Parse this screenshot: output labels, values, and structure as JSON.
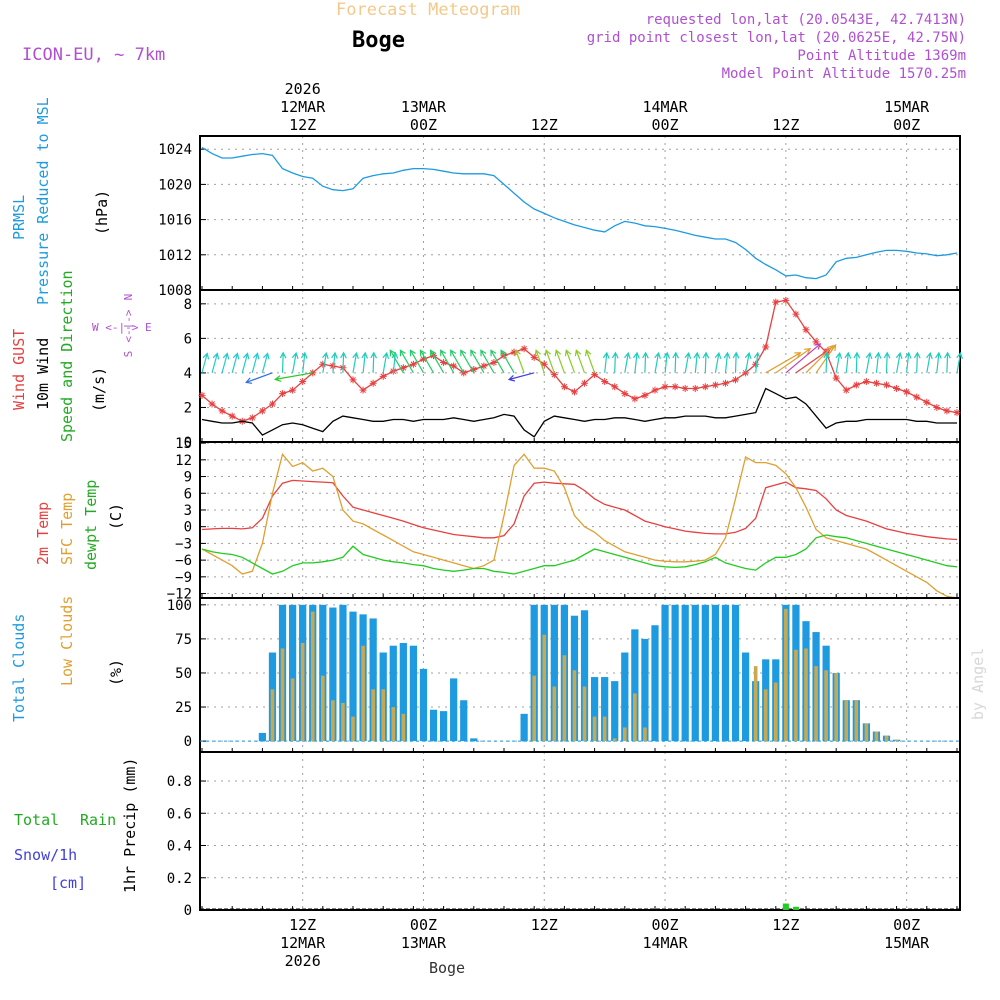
{
  "header": {
    "title": "Forecast Meteogram",
    "location": "Boge",
    "model": "ICON-EU, ~ 7km",
    "requested": "requested lon,lat (20.0543E, 42.7413N)",
    "grid_point": "grid point closest lon,lat (20.0625E, 42.75N)",
    "point_altitude": "Point Altitude 1369m",
    "model_altitude": "Model Point Altitude 1570.25m",
    "watermark": "by Angel",
    "bottom_label": "Boge"
  },
  "colors": {
    "pressure": "#1e9be0",
    "gust": "#e84040",
    "wind": "#000000",
    "t2m": "#e84040",
    "sfc": "#e0a030",
    "dewpt": "#22cc22",
    "total_clouds": "#1e9be0",
    "low_clouds": "#c8a850",
    "rain": "#22cc22",
    "snow": "#4040e0",
    "purple": "#b050d0"
  },
  "time_axis": {
    "top_labels": [
      {
        "t": 10,
        "lines": [
          "2026",
          "12MAR",
          "12Z"
        ]
      },
      {
        "t": 22,
        "lines": [
          "13MAR",
          "00Z"
        ]
      },
      {
        "t": 34,
        "lines": [
          "12Z"
        ]
      },
      {
        "t": 46,
        "lines": [
          "14MAR",
          "00Z"
        ]
      },
      {
        "t": 58,
        "lines": [
          "12Z"
        ]
      },
      {
        "t": 70,
        "lines": [
          "15MAR",
          "00Z"
        ]
      }
    ],
    "bottom_labels": [
      {
        "t": 10,
        "lines": [
          "12Z",
          "12MAR",
          "2026"
        ]
      },
      {
        "t": 22,
        "lines": [
          "00Z",
          "13MAR"
        ]
      },
      {
        "t": 34,
        "lines": [
          "12Z"
        ]
      },
      {
        "t": 46,
        "lines": [
          "00Z",
          "14MAR"
        ]
      },
      {
        "t": 58,
        "lines": [
          "12Z"
        ]
      },
      {
        "t": 70,
        "lines": [
          "00Z",
          "15MAR"
        ]
      }
    ]
  },
  "panel_labels": {
    "pressure": [
      "PRMSL",
      "Pressure Reduced to MSL",
      "(hPa)"
    ],
    "wind": [
      "Wind GUST",
      "10m Wind",
      "Speed and Direction",
      "(m/s)"
    ],
    "compass": [
      "N",
      "S",
      "W <-|-> E"
    ],
    "temp": [
      "2m Temp",
      "SFC Temp",
      "dewpt Temp",
      "(C)"
    ],
    "clouds": [
      "Total Clouds",
      "Low Clouds",
      "(%)"
    ],
    "precip": [
      "Total",
      "Rain",
      "Snow/1h",
      "[cm]",
      "1hr Precip (mm)"
    ]
  },
  "chart_data": [
    {
      "type": "line",
      "title": "PRMSL Pressure Reduced to MSL",
      "ylabel": "hPa",
      "ylim": [
        1008,
        1025.5
      ],
      "yticks": [
        1008,
        1012,
        1016,
        1020,
        1024
      ],
      "x": [
        0,
        1,
        2,
        3,
        4,
        5,
        6,
        7,
        8,
        9,
        10,
        11,
        12,
        13,
        14,
        15,
        16,
        17,
        18,
        19,
        20,
        21,
        22,
        23,
        24,
        25,
        26,
        27,
        28,
        29,
        30,
        31,
        32,
        33,
        34,
        35,
        36,
        37,
        38,
        39,
        40,
        41,
        42,
        43,
        44,
        45,
        46,
        47,
        48,
        49,
        50,
        51,
        52,
        53,
        54,
        55,
        56,
        57,
        58,
        59,
        60,
        61,
        62,
        63,
        64,
        65,
        66,
        67,
        68,
        69,
        70,
        71,
        72,
        73,
        74,
        75
      ],
      "series": [
        {
          "name": "PRMSL",
          "values": [
            1024.2,
            1023.5,
            1023.0,
            1023.0,
            1023.2,
            1023.4,
            1023.5,
            1023.3,
            1021.8,
            1021.3,
            1020.9,
            1020.7,
            1019.8,
            1019.4,
            1019.3,
            1019.5,
            1020.7,
            1021.0,
            1021.2,
            1021.3,
            1021.6,
            1021.8,
            1021.8,
            1021.7,
            1021.5,
            1021.3,
            1021.2,
            1021.2,
            1021.2,
            1021.0,
            1020.0,
            1019.0,
            1018.0,
            1017.2,
            1016.7,
            1016.2,
            1015.8,
            1015.4,
            1015.1,
            1014.8,
            1014.6,
            1015.3,
            1015.8,
            1015.6,
            1015.3,
            1015.2,
            1015.0,
            1014.8,
            1014.5,
            1014.2,
            1014.0,
            1013.8,
            1013.8,
            1013.4,
            1012.6,
            1011.6,
            1010.9,
            1010.3,
            1009.6,
            1009.7,
            1009.4,
            1009.3,
            1009.7,
            1011.2,
            1011.6,
            1011.7,
            1012.0,
            1012.3,
            1012.5,
            1012.5,
            1012.4,
            1012.2,
            1012.1,
            1011.9,
            1012.0,
            1012.2
          ]
        }
      ]
    },
    {
      "type": "line",
      "title": "Wind GUST / 10m Wind Speed and Direction",
      "ylabel": "m/s",
      "ylim": [
        0,
        8.8
      ],
      "yticks": [
        0,
        2,
        4,
        6,
        8
      ],
      "x": [
        0,
        1,
        2,
        3,
        4,
        5,
        6,
        7,
        8,
        9,
        10,
        11,
        12,
        13,
        14,
        15,
        16,
        17,
        18,
        19,
        20,
        21,
        22,
        23,
        24,
        25,
        26,
        27,
        28,
        29,
        30,
        31,
        32,
        33,
        34,
        35,
        36,
        37,
        38,
        39,
        40,
        41,
        42,
        43,
        44,
        45,
        46,
        47,
        48,
        49,
        50,
        51,
        52,
        53,
        54,
        55,
        56,
        57,
        58,
        59,
        60,
        61,
        62,
        63,
        64,
        65,
        66,
        67,
        68,
        69,
        70,
        71,
        72,
        73,
        74,
        75
      ],
      "series": [
        {
          "name": "Wind GUST",
          "values": [
            2.7,
            2.2,
            1.8,
            1.5,
            1.2,
            1.4,
            1.8,
            2.2,
            2.8,
            3.0,
            3.5,
            4.0,
            4.5,
            4.4,
            4.3,
            3.6,
            3.0,
            3.4,
            3.8,
            4.1,
            4.3,
            4.5,
            4.8,
            5.0,
            4.6,
            4.4,
            4.0,
            4.2,
            4.4,
            4.6,
            5.0,
            5.2,
            5.4,
            4.9,
            4.5,
            3.9,
            3.2,
            2.9,
            3.4,
            3.9,
            3.5,
            3.2,
            2.8,
            2.5,
            2.7,
            3.0,
            3.2,
            3.2,
            3.1,
            3.1,
            3.2,
            3.3,
            3.4,
            3.6,
            4.0,
            4.5,
            5.5,
            8.1,
            8.2,
            7.4,
            6.5,
            5.8,
            5.2,
            3.7,
            3.0,
            3.3,
            3.5,
            3.4,
            3.3,
            3.1,
            2.9,
            2.6,
            2.3,
            2.0,
            1.8,
            1.7
          ]
        },
        {
          "name": "10m Wind",
          "values": [
            1.3,
            1.2,
            1.1,
            1.1,
            1.2,
            1.1,
            0.4,
            0.7,
            1.0,
            1.1,
            1.0,
            0.8,
            0.6,
            1.2,
            1.5,
            1.4,
            1.3,
            1.2,
            1.2,
            1.3,
            1.3,
            1.2,
            1.3,
            1.3,
            1.3,
            1.4,
            1.3,
            1.2,
            1.3,
            1.4,
            1.6,
            1.5,
            0.7,
            0.3,
            1.2,
            1.5,
            1.4,
            1.3,
            1.2,
            1.3,
            1.3,
            1.4,
            1.4,
            1.3,
            1.2,
            1.3,
            1.4,
            1.4,
            1.5,
            1.5,
            1.5,
            1.4,
            1.4,
            1.5,
            1.6,
            1.7,
            3.1,
            2.8,
            2.5,
            2.6,
            2.2,
            1.5,
            0.8,
            1.1,
            1.2,
            1.2,
            1.3,
            1.3,
            1.3,
            1.3,
            1.3,
            1.2,
            1.2,
            1.1,
            1.1,
            1.1
          ]
        }
      ],
      "wind_arrows": {
        "y_level": 4.7,
        "arrow_1": "cyan arrows pointing north-northeast most hours",
        "special_times": [
          7,
          11,
          33,
          56,
          57,
          58,
          59,
          60,
          61
        ]
      }
    },
    {
      "type": "line",
      "title": "2m Temp / SFC Temp / dewpt Temp",
      "ylabel": "C",
      "ylim": [
        -12.8,
        15.2
      ],
      "yticks": [
        -12,
        -9,
        -6,
        -3,
        0,
        3,
        6,
        9,
        12,
        15
      ],
      "x": [
        0,
        1,
        2,
        3,
        4,
        5,
        6,
        7,
        8,
        9,
        10,
        11,
        12,
        13,
        14,
        15,
        16,
        17,
        18,
        19,
        20,
        21,
        22,
        23,
        24,
        25,
        26,
        27,
        28,
        29,
        30,
        31,
        32,
        33,
        34,
        35,
        36,
        37,
        38,
        39,
        40,
        41,
        42,
        43,
        44,
        45,
        46,
        47,
        48,
        49,
        50,
        51,
        52,
        53,
        54,
        55,
        56,
        57,
        58,
        59,
        60,
        61,
        62,
        63,
        64,
        65,
        66,
        67,
        68,
        69,
        70,
        71,
        72,
        73,
        74,
        75
      ],
      "series": [
        {
          "name": "2m Temp",
          "values": [
            -0.5,
            -0.4,
            -0.3,
            -0.3,
            -0.4,
            -0.2,
            1.5,
            5.5,
            7.8,
            8.3,
            8.2,
            8.1,
            8.0,
            7.9,
            5.5,
            3.5,
            3.0,
            2.5,
            2.0,
            1.5,
            1.0,
            0.4,
            -0.2,
            -0.6,
            -1.0,
            -1.4,
            -1.6,
            -1.8,
            -2.0,
            -2.0,
            -1.6,
            0.5,
            5.5,
            7.8,
            8.0,
            7.8,
            7.7,
            7.6,
            6.5,
            5.0,
            4.0,
            3.5,
            3.0,
            2.0,
            1.0,
            0.5,
            0.0,
            -0.4,
            -0.8,
            -1.0,
            -1.2,
            -1.3,
            -1.3,
            -1.0,
            -0.3,
            1.5,
            7.0,
            7.5,
            8.0,
            7.0,
            6.8,
            6.5,
            5.0,
            3.0,
            2.0,
            1.5,
            1.0,
            0.3,
            -0.4,
            -0.8,
            -1.2,
            -1.5,
            -1.8,
            -2.0,
            -2.2,
            -2.3
          ]
        },
        {
          "name": "SFC Temp",
          "values": [
            -4.0,
            -5.0,
            -6.0,
            -7.0,
            -8.5,
            -8.0,
            -3.0,
            6.0,
            13.0,
            10.8,
            11.5,
            10.0,
            10.5,
            9.0,
            3.0,
            1.0,
            0.5,
            -0.5,
            -1.5,
            -2.5,
            -3.5,
            -4.5,
            -5.0,
            -5.5,
            -6.0,
            -6.5,
            -7.0,
            -7.5,
            -7.0,
            -6.0,
            2.0,
            11.0,
            13.0,
            10.5,
            10.5,
            10.0,
            7.0,
            2.0,
            0.0,
            -1.0,
            -2.5,
            -3.5,
            -4.5,
            -5.0,
            -5.5,
            -6.0,
            -6.2,
            -6.3,
            -6.3,
            -6.2,
            -6.0,
            -5.0,
            -2.0,
            5.0,
            12.5,
            11.5,
            11.5,
            11.0,
            9.5,
            7.0,
            3.5,
            -0.5,
            -2.0,
            -2.5,
            -3.0,
            -3.5,
            -4.0,
            -5.0,
            -6.0,
            -7.0,
            -8.0,
            -9.0,
            -10.0,
            -11.5,
            -12.5,
            -12.8
          ]
        },
        {
          "name": "dewpt Temp",
          "values": [
            -4.0,
            -4.5,
            -4.8,
            -5.0,
            -5.5,
            -6.5,
            -7.5,
            -8.5,
            -8.0,
            -7.0,
            -6.5,
            -6.5,
            -6.3,
            -6.0,
            -5.5,
            -3.5,
            -5.0,
            -5.5,
            -6.0,
            -6.3,
            -6.5,
            -6.8,
            -7.0,
            -7.5,
            -7.8,
            -8.0,
            -7.8,
            -7.5,
            -7.5,
            -8.0,
            -8.2,
            -8.5,
            -8.0,
            -7.5,
            -7.0,
            -7.0,
            -6.5,
            -6.0,
            -5.0,
            -4.0,
            -4.5,
            -5.0,
            -5.5,
            -6.0,
            -6.5,
            -7.0,
            -7.2,
            -7.3,
            -7.2,
            -6.8,
            -6.3,
            -5.5,
            -6.5,
            -7.0,
            -7.5,
            -7.8,
            -6.5,
            -5.5,
            -5.5,
            -5.0,
            -4.0,
            -2.0,
            -1.5,
            -1.8,
            -2.0,
            -2.5,
            -3.0,
            -3.5,
            -4.0,
            -4.5,
            -5.0,
            -5.5,
            -6.0,
            -6.5,
            -7.0,
            -7.2
          ]
        }
      ]
    },
    {
      "type": "bar",
      "title": "Total Clouds / Low Clouds",
      "ylabel": "%",
      "ylim": [
        -8,
        105
      ],
      "yticks": [
        0,
        25,
        50,
        75,
        100
      ],
      "x": [
        0,
        1,
        2,
        3,
        4,
        5,
        6,
        7,
        8,
        9,
        10,
        11,
        12,
        13,
        14,
        15,
        16,
        17,
        18,
        19,
        20,
        21,
        22,
        23,
        24,
        25,
        26,
        27,
        28,
        29,
        30,
        31,
        32,
        33,
        34,
        35,
        36,
        37,
        38,
        39,
        40,
        41,
        42,
        43,
        44,
        45,
        46,
        47,
        48,
        49,
        50,
        51,
        52,
        53,
        54,
        55,
        56,
        57,
        58,
        59,
        60,
        61,
        62,
        63,
        64,
        65,
        66,
        67,
        68,
        69,
        70,
        71,
        72,
        73,
        74,
        75
      ],
      "series": [
        {
          "name": "Total Clouds",
          "values": [
            0,
            0,
            0,
            0,
            0,
            0,
            6,
            65,
            100,
            100,
            100,
            100,
            100,
            98,
            100,
            95,
            93,
            90,
            65,
            70,
            72,
            70,
            53,
            23,
            22,
            46,
            30,
            2,
            0,
            0,
            0,
            0,
            20,
            100,
            100,
            100,
            100,
            92,
            96,
            47,
            47,
            44,
            65,
            82,
            75,
            85,
            100,
            100,
            100,
            100,
            100,
            100,
            100,
            100,
            65,
            44,
            60,
            60,
            100,
            100,
            88,
            80,
            70,
            50,
            30,
            30,
            13,
            7,
            4,
            1,
            0,
            0,
            0,
            0,
            0,
            0
          ]
        },
        {
          "name": "Low Clouds",
          "values": [
            0,
            0,
            0,
            0,
            0,
            0,
            0,
            38,
            68,
            46,
            72,
            95,
            48,
            30,
            28,
            18,
            70,
            38,
            38,
            25,
            20,
            0,
            0,
            0,
            0,
            0,
            0,
            0,
            0,
            0,
            0,
            0,
            0,
            48,
            78,
            40,
            63,
            52,
            40,
            18,
            18,
            2,
            10,
            35,
            10,
            0,
            0,
            0,
            0,
            0,
            0,
            0,
            0,
            0,
            0,
            55,
            38,
            43,
            97,
            67,
            68,
            55,
            52,
            50,
            30,
            30,
            13,
            7,
            4,
            1,
            0,
            0,
            0,
            0,
            0,
            0
          ]
        }
      ]
    },
    {
      "type": "bar",
      "title": "1hr Precip (mm)",
      "ylabel": "1hr Precip (mm)",
      "ylim": [
        0,
        0.98
      ],
      "yticks": [
        0,
        0.2,
        0.4,
        0.6,
        0.8
      ],
      "yticklabels": [
        "0",
        "0.2",
        "0.4",
        "0.6",
        "0.8"
      ],
      "x": [
        58,
        59
      ],
      "series": [
        {
          "name": "Total Rain",
          "values": [
            0.04,
            0.02
          ]
        },
        {
          "name": "Snow/1h",
          "values": [
            0,
            0
          ]
        }
      ]
    }
  ]
}
